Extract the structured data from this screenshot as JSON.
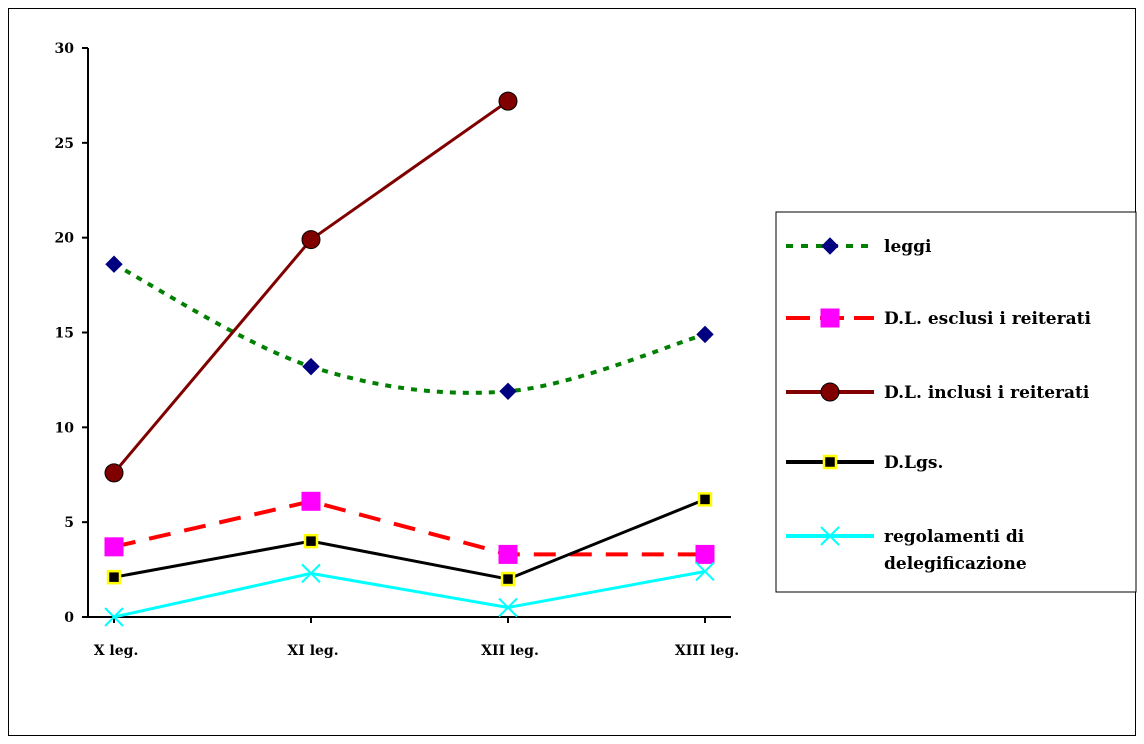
{
  "chart_data": {
    "type": "line",
    "title": "",
    "xlabel": "",
    "ylabel": "",
    "categories": [
      "X leg.",
      "XI leg.",
      "XII leg.",
      "XIII leg."
    ],
    "ylim": [
      0,
      30
    ],
    "yticks": [
      "0",
      "5",
      "10",
      "15",
      "20",
      "25",
      "30"
    ],
    "grid": false,
    "legend_position": "right",
    "series": [
      {
        "name": "leggi",
        "values": [
          18.6,
          13.2,
          11.9,
          14.9
        ],
        "color": "#008000",
        "marker": "diamond",
        "marker_color": "#000080",
        "dash": "dotted"
      },
      {
        "name": "D.L. esclusi i reiterati",
        "values": [
          3.7,
          6.1,
          3.3,
          3.3
        ],
        "color": "#ff0000",
        "marker": "square",
        "marker_color": "#ff00ff",
        "dash": "dashed"
      },
      {
        "name": "D.L. inclusi i reiterati",
        "values": [
          7.6,
          19.9,
          27.2,
          null
        ],
        "color": "#800000",
        "marker": "circle",
        "marker_color": "#800000",
        "dash": "solid"
      },
      {
        "name": "D.Lgs.",
        "values": [
          2.1,
          4.0,
          2.0,
          6.2
        ],
        "color": "#000000",
        "marker": "small-square",
        "marker_color": "#000000",
        "dash": "solid"
      },
      {
        "name": "regolamenti di delegificazione",
        "name_lines": [
          "regolamenti di",
          "delegificazione"
        ],
        "values": [
          0.0,
          2.3,
          0.5,
          2.4
        ],
        "color": "#00ffff",
        "marker": "x",
        "marker_color": "#00ffff",
        "dash": "solid"
      }
    ]
  }
}
